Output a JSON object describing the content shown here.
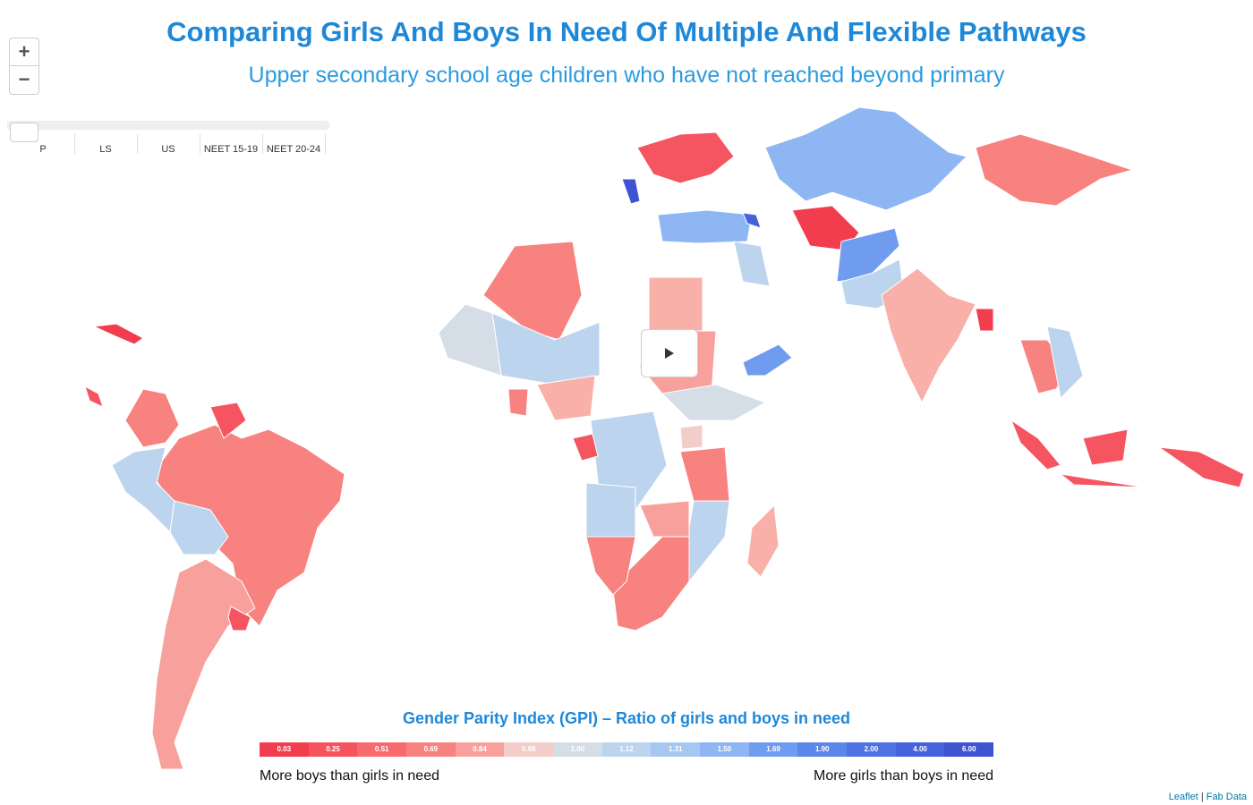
{
  "header": {
    "title": "Comparing Girls And Boys In Need Of Multiple And Flexible Pathways",
    "subtitle": "Upper secondary school age children who have not reached beyond primary"
  },
  "zoom_controls": [
    "+",
    "−"
  ],
  "slider": {
    "labels": [
      "P",
      "LS",
      "US",
      "NEET 15-19",
      "NEET 20-24"
    ]
  },
  "legend": {
    "title": "Gender Parity Index (GPI) – Ratio of girls and boys in need",
    "items": [
      {
        "label": "0.03",
        "color": "#f23d4f"
      },
      {
        "label": "0.25",
        "color": "#f5545f"
      },
      {
        "label": "0.51",
        "color": "#f76b6e"
      },
      {
        "label": "0.69",
        "color": "#f7827f"
      },
      {
        "label": "0.84",
        "color": "#f8a09b"
      },
      {
        "label": "0.98",
        "color": "#f2cdca"
      },
      {
        "label": "1.00",
        "color": "#d5dde6"
      },
      {
        "label": "1.12",
        "color": "#bcd4ee"
      },
      {
        "label": "1.31",
        "color": "#a6c7f0"
      },
      {
        "label": "1.50",
        "color": "#8db6f2"
      },
      {
        "label": "1.69",
        "color": "#6f9cef"
      },
      {
        "label": "1.90",
        "color": "#5d86ea"
      },
      {
        "label": "2.00",
        "color": "#4f72e2"
      },
      {
        "label": "4.00",
        "color": "#4562db"
      },
      {
        "label": "6.00",
        "color": "#3f54d3"
      }
    ],
    "left_note": "More boys than girls in need",
    "right_note": "More girls than boys in need"
  },
  "attribution": {
    "links": [
      "Leaflet",
      "Fab Data"
    ],
    "separator": "|"
  }
}
